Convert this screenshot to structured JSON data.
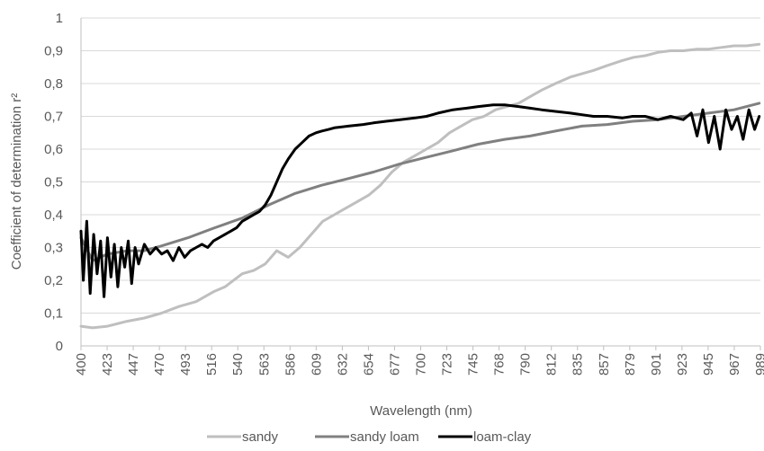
{
  "chart_data": {
    "type": "line",
    "title": "",
    "xlabel": "Wavelength (nm)",
    "ylabel": "Coefficient of determination  r²",
    "ylim": [
      0,
      1
    ],
    "xlim": [
      400,
      990
    ],
    "y_ticks": [
      "0",
      "0,1",
      "0,2",
      "0,3",
      "0,4",
      "0,5",
      "0,6",
      "0,7",
      "0,8",
      "0,9",
      "1"
    ],
    "x_ticks": [
      "400",
      "423",
      "447",
      "470",
      "493",
      "516",
      "540",
      "563",
      "586",
      "609",
      "632",
      "654",
      "677",
      "700",
      "723",
      "745",
      "768",
      "790",
      "812",
      "835",
      "857",
      "879",
      "901",
      "923",
      "945",
      "967",
      "989"
    ],
    "grid": true,
    "legend_position": "bottom",
    "series": [
      {
        "name": "sandy",
        "color": "#bfbfbf",
        "x": [
          400,
          410,
          423,
          440,
          455,
          470,
          485,
          500,
          515,
          525,
          540,
          550,
          560,
          570,
          580,
          590,
          600,
          610,
          620,
          630,
          640,
          650,
          660,
          670,
          680,
          690,
          700,
          710,
          720,
          730,
          740,
          750,
          760,
          770,
          780,
          790,
          800,
          812,
          825,
          835,
          845,
          857,
          870,
          880,
          890,
          901,
          912,
          923,
          935,
          945,
          956,
          967,
          978,
          989
        ],
        "y": [
          0.06,
          0.055,
          0.06,
          0.075,
          0.085,
          0.1,
          0.12,
          0.135,
          0.165,
          0.18,
          0.22,
          0.23,
          0.25,
          0.29,
          0.27,
          0.3,
          0.34,
          0.38,
          0.4,
          0.42,
          0.44,
          0.46,
          0.49,
          0.53,
          0.56,
          0.58,
          0.6,
          0.62,
          0.65,
          0.67,
          0.69,
          0.7,
          0.72,
          0.73,
          0.74,
          0.76,
          0.78,
          0.8,
          0.82,
          0.83,
          0.84,
          0.855,
          0.87,
          0.88,
          0.885,
          0.895,
          0.9,
          0.9,
          0.905,
          0.905,
          0.91,
          0.915,
          0.915,
          0.92
        ]
      },
      {
        "name": "sandy loam",
        "color": "#808080",
        "x": [
          400,
          410,
          423,
          440,
          455,
          470,
          493,
          516,
          540,
          563,
          586,
          609,
          632,
          654,
          677,
          700,
          723,
          745,
          768,
          790,
          812,
          835,
          857,
          879,
          901,
          923,
          945,
          967,
          989
        ],
        "y": [
          0.33,
          0.26,
          0.28,
          0.29,
          0.29,
          0.305,
          0.33,
          0.36,
          0.39,
          0.43,
          0.465,
          0.49,
          0.51,
          0.53,
          0.555,
          0.575,
          0.595,
          0.615,
          0.63,
          0.64,
          0.655,
          0.67,
          0.675,
          0.685,
          0.69,
          0.7,
          0.71,
          0.72,
          0.74
        ]
      },
      {
        "name": "loam-clay",
        "color": "#000000",
        "x": [
          400,
          402,
          405,
          408,
          411,
          414,
          417,
          420,
          423,
          426,
          429,
          432,
          435,
          438,
          441,
          444,
          447,
          450,
          455,
          460,
          465,
          470,
          475,
          480,
          485,
          490,
          495,
          500,
          505,
          510,
          515,
          520,
          525,
          530,
          535,
          540,
          545,
          550,
          555,
          560,
          565,
          570,
          575,
          580,
          586,
          592,
          598,
          604,
          609,
          615,
          620,
          632,
          645,
          654,
          665,
          677,
          690,
          700,
          710,
          723,
          735,
          745,
          758,
          768,
          780,
          790,
          800,
          812,
          825,
          835,
          845,
          857,
          870,
          879,
          890,
          901,
          912,
          923,
          930,
          935,
          940,
          945,
          950,
          955,
          960,
          965,
          970,
          975,
          980,
          985,
          989
        ],
        "y": [
          0.35,
          0.2,
          0.38,
          0.16,
          0.34,
          0.22,
          0.32,
          0.15,
          0.33,
          0.21,
          0.31,
          0.18,
          0.3,
          0.24,
          0.32,
          0.19,
          0.3,
          0.25,
          0.31,
          0.28,
          0.3,
          0.28,
          0.29,
          0.26,
          0.3,
          0.27,
          0.29,
          0.3,
          0.31,
          0.3,
          0.32,
          0.33,
          0.34,
          0.35,
          0.36,
          0.38,
          0.39,
          0.4,
          0.41,
          0.43,
          0.46,
          0.5,
          0.54,
          0.57,
          0.6,
          0.62,
          0.64,
          0.65,
          0.655,
          0.66,
          0.665,
          0.67,
          0.675,
          0.68,
          0.685,
          0.69,
          0.695,
          0.7,
          0.71,
          0.72,
          0.725,
          0.73,
          0.735,
          0.735,
          0.73,
          0.725,
          0.72,
          0.715,
          0.71,
          0.705,
          0.7,
          0.7,
          0.695,
          0.7,
          0.7,
          0.69,
          0.7,
          0.69,
          0.71,
          0.64,
          0.72,
          0.62,
          0.7,
          0.6,
          0.72,
          0.66,
          0.7,
          0.63,
          0.72,
          0.66,
          0.7
        ]
      }
    ]
  }
}
